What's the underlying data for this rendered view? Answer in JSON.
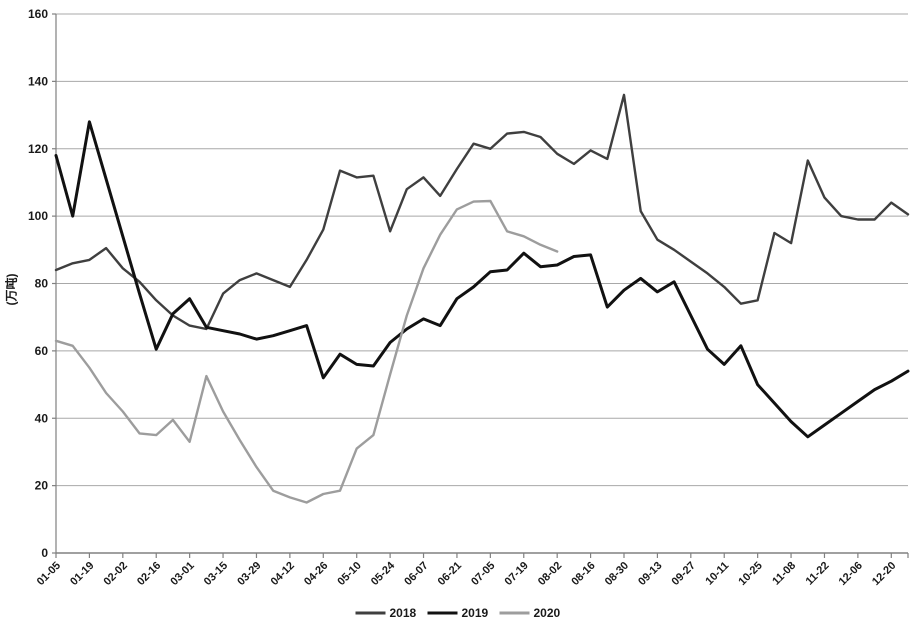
{
  "chart_data": {
    "type": "line",
    "title": "",
    "xlabel": "",
    "ylabel": "(万吨)",
    "ylim": [
      0,
      160
    ],
    "y_step": 20,
    "grid": "horizontal-only",
    "legend_position": "bottom-center",
    "background": "#ffffff",
    "gridline_color": "#a8a8a8",
    "axis_color": "#808080",
    "text_color": "#1a1a1a",
    "x_tick_labels_visible": [
      "01-05",
      "01-19",
      "02-02",
      "02-16",
      "03-01",
      "03-15",
      "03-29",
      "04-12",
      "04-26",
      "05-10",
      "05-24",
      "06-07",
      "06-21",
      "07-05",
      "07-19",
      "08-02",
      "08-16",
      "08-30",
      "09-13",
      "09-27",
      "10-11",
      "10-25",
      "11-08",
      "11-22",
      "12-06",
      "12-20"
    ],
    "y_tick_labels_visible": [
      "0",
      "20",
      "40",
      "60",
      "80",
      "100",
      "120",
      "140",
      "160"
    ],
    "categories": [
      "01-05",
      "01-12",
      "01-19",
      "01-26",
      "02-02",
      "02-09",
      "02-16",
      "02-23",
      "03-01",
      "03-08",
      "03-15",
      "03-22",
      "03-29",
      "04-05",
      "04-12",
      "04-19",
      "04-26",
      "05-03",
      "05-10",
      "05-17",
      "05-24",
      "05-31",
      "06-07",
      "06-14",
      "06-21",
      "06-28",
      "07-05",
      "07-12",
      "07-19",
      "07-26",
      "08-02",
      "08-09",
      "08-16",
      "08-23",
      "08-30",
      "09-06",
      "09-13",
      "09-20",
      "09-27",
      "10-04",
      "10-11",
      "10-18",
      "10-25",
      "11-01",
      "11-08",
      "11-15",
      "11-22",
      "11-29",
      "12-06",
      "12-13",
      "12-20",
      "12-27"
    ],
    "label_every_n_points": 2,
    "series": [
      {
        "name": "2018",
        "color": "#3f3f3f",
        "line_width": 2.4,
        "values": [
          84,
          86,
          87,
          90.5,
          84.5,
          80.5,
          75,
          70.5,
          67.5,
          66.5,
          77,
          81,
          83,
          81,
          79,
          87,
          96,
          113.5,
          111.5,
          112,
          95.5,
          108,
          111.5,
          106,
          114,
          121.5,
          120,
          124.5,
          125,
          123.5,
          118.5,
          115.5,
          119.5,
          117,
          136,
          101.5,
          93,
          90,
          86.5,
          83,
          79,
          74,
          75,
          95,
          92,
          116.5,
          105.5,
          100,
          99,
          99,
          104,
          100.5
        ]
      },
      {
        "name": "2019",
        "color": "#111111",
        "line_width": 3,
        "values": [
          118,
          100,
          128,
          111,
          94,
          77,
          60.5,
          71,
          75.5,
          67,
          66,
          65,
          63.5,
          64.5,
          66,
          67.5,
          52,
          59,
          56,
          55.5,
          62.5,
          66.5,
          69.5,
          67.5,
          75.5,
          79,
          83.5,
          84,
          89,
          85,
          85.5,
          88,
          88.5,
          73,
          78,
          81.5,
          77.5,
          80.5,
          70.5,
          60.5,
          56,
          61.5,
          50,
          44.5,
          39,
          34.5,
          38,
          41.5,
          45,
          48.5,
          51,
          54
        ]
      },
      {
        "name": "2020",
        "color": "#9d9d9d",
        "line_width": 2.4,
        "values": [
          63,
          61.5,
          55,
          47.5,
          42,
          35.5,
          35,
          39.5,
          33,
          52.5,
          42,
          33.5,
          25.5,
          18.5,
          16.5,
          15,
          17.5,
          18.5,
          31,
          35,
          53,
          70.5,
          84.5,
          94.5,
          102,
          104.3,
          104.5,
          95.5,
          94,
          91.5,
          89.5
        ]
      }
    ],
    "legend": [
      {
        "label": "2018",
        "color": "#3f3f3f"
      },
      {
        "label": "2019",
        "color": "#111111"
      },
      {
        "label": "2020",
        "color": "#9d9d9d"
      }
    ]
  }
}
